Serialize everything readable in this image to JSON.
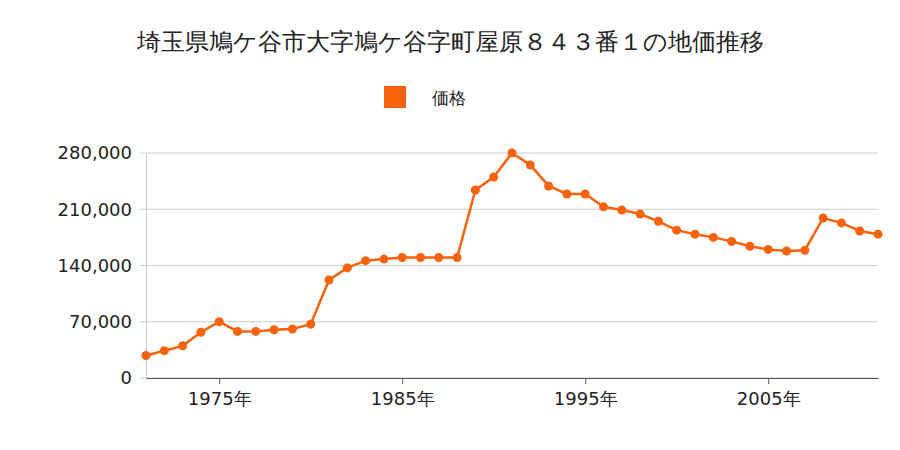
{
  "chart_data": {
    "type": "line",
    "title": "埼玉県鳩ケ谷市大字鳩ケ谷字町屋原８４３番１の地価推移",
    "x": [
      1971,
      1972,
      1973,
      1974,
      1975,
      1976,
      1977,
      1978,
      1979,
      1980,
      1981,
      1982,
      1983,
      1984,
      1985,
      1986,
      1987,
      1988,
      1989,
      1990,
      1991,
      1992,
      1993,
      1994,
      1995,
      1996,
      1997,
      1998,
      1999,
      2000,
      2001,
      2002,
      2003,
      2004,
      2005,
      2006,
      2007,
      2008,
      2009,
      2010,
      2011
    ],
    "series": [
      {
        "name": "価格",
        "color": "#f6620e",
        "marker": "circle",
        "line_style": "solid",
        "values": [
          28000,
          34000,
          40000,
          57000,
          70000,
          58000,
          58000,
          60000,
          61000,
          67000,
          122000,
          137000,
          146000,
          148000,
          150000,
          150000,
          150000,
          150000,
          234000,
          250000,
          280000,
          265000,
          239000,
          229000,
          229000,
          213000,
          209000,
          204000,
          195000,
          184000,
          179000,
          175000,
          170000,
          164000,
          160000,
          158000,
          159000,
          199000,
          193000,
          183000,
          179000
        ]
      }
    ],
    "xlim": [
      1971,
      2011
    ],
    "xticks": [
      {
        "value": 1975,
        "label": "1975年"
      },
      {
        "value": 1985,
        "label": "1985年"
      },
      {
        "value": 1995,
        "label": "1995年"
      },
      {
        "value": 2005,
        "label": "2005年"
      }
    ],
    "ylim": [
      0,
      280000
    ],
    "yticks": [
      0,
      {
        "value": 70000,
        "label": "70,000"
      },
      {
        "value": 140000,
        "label": "140,000"
      },
      {
        "value": 210000,
        "label": "210,000"
      },
      {
        "value": 280000,
        "label": "280,000"
      }
    ],
    "grid": true,
    "legend": "top"
  }
}
